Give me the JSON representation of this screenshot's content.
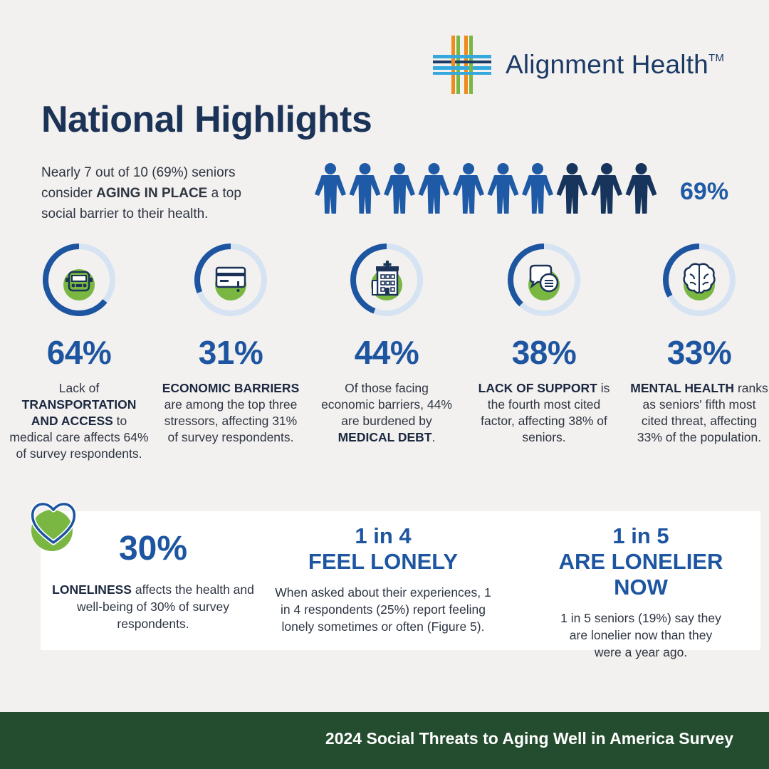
{
  "brand": {
    "name": "Alignment Health",
    "tm": "TM",
    "colors": {
      "orange": "#f08a1c",
      "green": "#79b742",
      "cyan": "#35a9dd",
      "navy": "#1c3a66"
    }
  },
  "title": "National Highlights",
  "intro": {
    "pre": "Nearly 7 out of 10 (69%) seniors consider ",
    "bold": "AGING IN PLACE",
    "post": " a top social barrier to their health."
  },
  "people": {
    "total": 10,
    "highlighted": 7,
    "percent_label": "69%"
  },
  "stats": [
    {
      "icon": "car-icon",
      "fraction": 0.64,
      "value": "64%",
      "desc": [
        {
          "t": "Lack of "
        },
        {
          "t": "TRANSPORTATION AND ACCESS",
          "b": true
        },
        {
          "t": " to medical care affects 64% of survey respondents."
        }
      ]
    },
    {
      "icon": "credit-card-alert-icon",
      "fraction": 0.31,
      "value": "31%",
      "desc": [
        {
          "t": "ECONOMIC BARRIERS",
          "b": true
        },
        {
          "t": " are among the top three stressors, affecting 31% of survey respondents."
        }
      ]
    },
    {
      "icon": "hospital-icon",
      "fraction": 0.44,
      "value": "44%",
      "desc": [
        {
          "t": "Of those facing economic barriers, 44% are burdened by "
        },
        {
          "t": "MEDICAL DEBT",
          "b": true
        },
        {
          "t": "."
        }
      ]
    },
    {
      "icon": "chat-bubbles-icon",
      "fraction": 0.38,
      "value": "38%",
      "desc": [
        {
          "t": "LACK OF SUPPORT",
          "b": true
        },
        {
          "t": " is the fourth most cited factor, affecting 38% of seniors."
        }
      ]
    },
    {
      "icon": "brain-icon",
      "fraction": 0.33,
      "value": "33%",
      "desc": [
        {
          "t": "MENTAL HEALTH",
          "b": true
        },
        {
          "t": " ranks as seniors' fifth most cited threat, affecting 33% of the population."
        }
      ]
    }
  ],
  "bottom": {
    "loneliness": {
      "value": "30%",
      "desc_bold": "LONELINESS",
      "desc_rest": " affects the health and well-being of 30% of survey respondents."
    },
    "feel_lonely": {
      "line1": "1 in 4",
      "line2": "FEEL LONELY",
      "desc": "When asked about their experiences, 1 in 4 respondents (25%) report feeling lonely sometimes or often (Figure 5)."
    },
    "lonelier_now": {
      "line1": "1 in 5",
      "line2": "ARE LONELIER NOW",
      "desc": "1 in 5 seniors (19%) say they are lonelier now than they were a year ago."
    }
  },
  "footer": "2024 Social Threats to Aging Well in America Survey"
}
